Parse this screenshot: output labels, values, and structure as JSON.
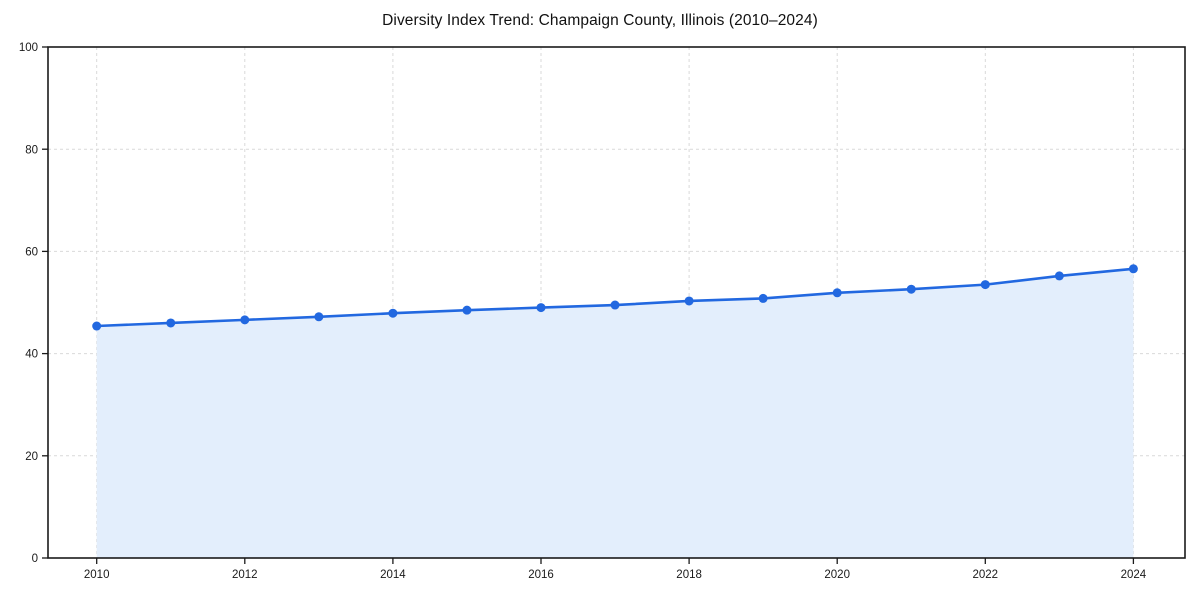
{
  "chart_data": {
    "type": "area",
    "title": "Diversity Index Trend: Champaign County, Illinois (2010–2024)",
    "series_name": "Diversity Index",
    "x": [
      2010,
      2011,
      2012,
      2013,
      2014,
      2015,
      2016,
      2017,
      2018,
      2019,
      2020,
      2021,
      2022,
      2023,
      2024
    ],
    "values": [
      45.4,
      46.0,
      46.6,
      47.2,
      47.9,
      48.5,
      49.0,
      49.5,
      50.3,
      50.8,
      51.9,
      52.6,
      53.5,
      55.2,
      56.6
    ],
    "xlabel": "",
    "ylabel": "",
    "ylim": [
      0,
      100
    ],
    "yticks": [
      0,
      20,
      40,
      60,
      80,
      100
    ],
    "xticks": [
      2010,
      2012,
      2014,
      2016,
      2018,
      2020,
      2022,
      2024
    ],
    "grid": "dashed",
    "legend_position": "none",
    "colors": {
      "line": "#2268e0",
      "marker": "#2268e0",
      "fill": "#e3eefc",
      "grid": "#d9d9d9",
      "spine": "#1a1a1a",
      "tick_label": "#1a1a1a",
      "title": "#111111"
    }
  }
}
